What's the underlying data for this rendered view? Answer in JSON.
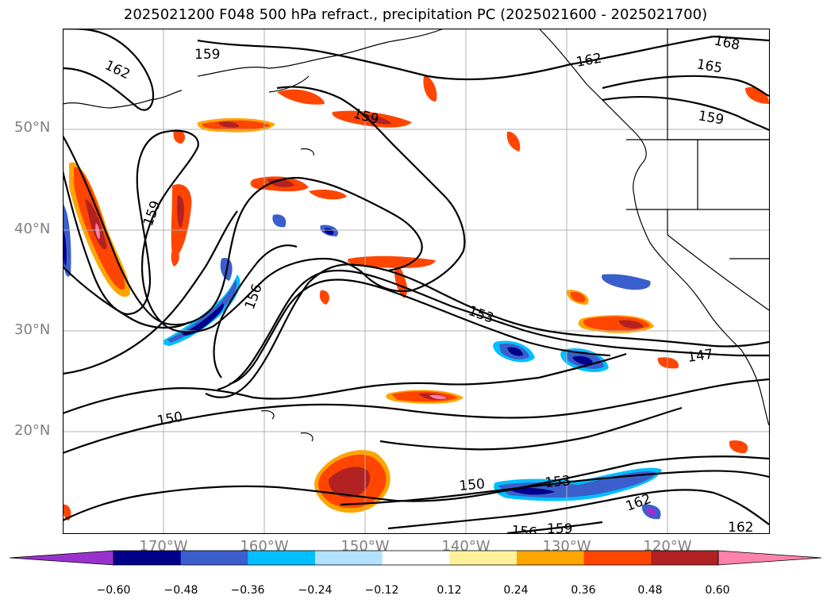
{
  "title": "2025021200 F048 500 hPa refract., precipitation PC (2025021600 - 2025021700)",
  "lat_labels": [
    "50°N",
    "40°N",
    "30°N",
    "20°N"
  ],
  "lon_labels": [
    "170°W",
    "160°W",
    "150°W",
    "140°W",
    "130°W",
    "120°W"
  ],
  "contour_labels": [
    "159",
    "162",
    "159",
    "168",
    "165",
    "162",
    "159",
    "159",
    "156",
    "153",
    "150",
    "147",
    "150",
    "153",
    "156",
    "159",
    "162",
    "162"
  ],
  "colorbar": {
    "ticks": [
      "−0.60",
      "−0.48",
      "−0.36",
      "−0.24",
      "−0.12",
      "0.12",
      "0.24",
      "0.36",
      "0.48",
      "0.60"
    ],
    "colors": [
      "#9932cc",
      "#00008b",
      "#3a5fcd",
      "#00bfff",
      "#b0e2ff",
      "#ffffff",
      "#fff09a",
      "#ffa500",
      "#ff4500",
      "#b22222",
      "#ff82ab"
    ]
  },
  "colors": {
    "contour": "#000000",
    "coast": "#000000",
    "grid": "#b0b0b0",
    "axis_text": "#808080"
  }
}
